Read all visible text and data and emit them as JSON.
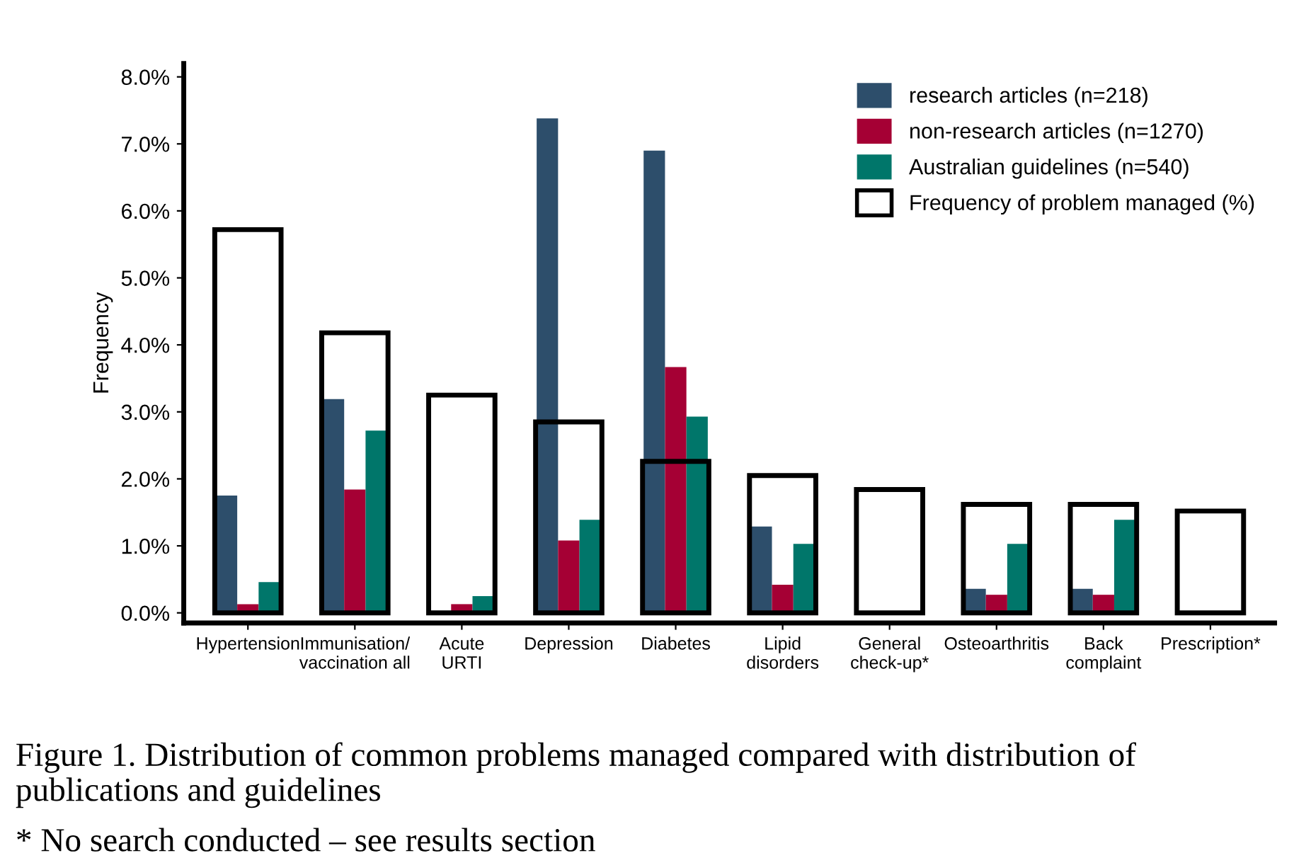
{
  "chart_data": {
    "type": "bar",
    "ylabel": "Frequency",
    "categories": [
      "Hypertension",
      "Immunisation/\nvaccination all",
      "Acute\nURTI",
      "Depression",
      "Diabetes",
      "Lipid\ndisorders",
      "General\ncheck-up*",
      "Osteoarthritis",
      "Back\ncomplaint",
      "Prescription*"
    ],
    "series": [
      {
        "name": "Frequency of problem managed (%)",
        "color": "#000000",
        "values": [
          5.72,
          4.18,
          3.25,
          2.85,
          2.26,
          2.05,
          1.84,
          1.62,
          1.62,
          1.52
        ]
      },
      {
        "name": "research articles (n=218)",
        "color": "#2d4e6b",
        "values": [
          1.75,
          3.19,
          null,
          7.38,
          6.9,
          1.29,
          null,
          0.36,
          0.36,
          null
        ]
      },
      {
        "name": "non-research articles (n=1270)",
        "color": "#a50034",
        "values": [
          0.13,
          1.84,
          0.13,
          1.08,
          3.67,
          0.42,
          null,
          0.27,
          0.27,
          null
        ]
      },
      {
        "name": "Australian guidelines (n=540)",
        "color": "#00766a",
        "values": [
          0.46,
          2.72,
          0.25,
          1.39,
          2.93,
          1.03,
          null,
          1.03,
          1.39,
          null
        ]
      }
    ],
    "ylim": [
      -0.15,
      8.2
    ],
    "yticks": [
      {
        "value": 0,
        "label": "0.0%"
      },
      {
        "value": 1,
        "label": "1.0%"
      },
      {
        "value": 2,
        "label": "2.0%"
      },
      {
        "value": 3,
        "label": "3.0%"
      },
      {
        "value": 4,
        "label": "4.0%"
      },
      {
        "value": 5,
        "label": "5.0%"
      },
      {
        "value": 6,
        "label": "6.0%"
      },
      {
        "value": 7,
        "label": "7.0%"
      },
      {
        "value": 8,
        "label": "8.0%"
      }
    ],
    "legend": "top right",
    "grid": false,
    "annotations": [
      "Figure 1. Distribution of common problems managed compared with distribution of publications and guidelines",
      "* No search conducted – see results section"
    ]
  }
}
